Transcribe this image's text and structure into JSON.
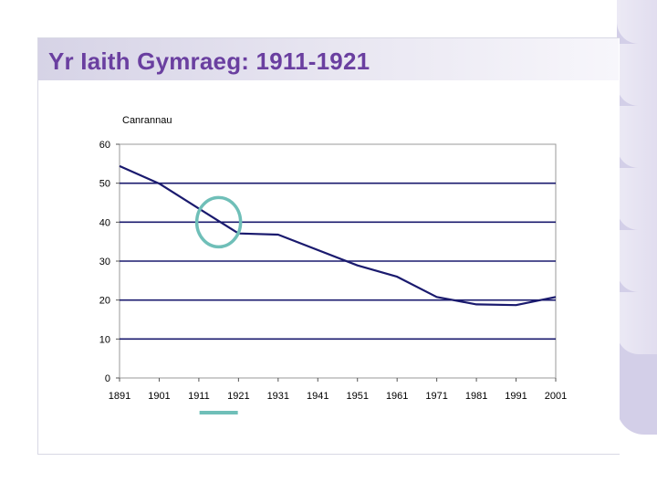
{
  "slide": {
    "title": "Yr Iaith Gymraeg: 1911-1921"
  },
  "colors": {
    "title": "#6a3fa0",
    "series_line": "#1a1a6e",
    "gridline": "#1a1a6e",
    "highlight": "#6fbfb8"
  },
  "chart_data": {
    "type": "line",
    "ylabel": "Canrannau",
    "xlabel": "",
    "ylim": [
      0,
      60
    ],
    "yticks": [
      0,
      10,
      20,
      30,
      40,
      50,
      60
    ],
    "xticks": [
      1891,
      1901,
      1911,
      1921,
      1931,
      1941,
      1951,
      1961,
      1971,
      1981,
      1991,
      2001
    ],
    "xlim": [
      1891,
      2001
    ],
    "grid": "horizontal",
    "series": [
      {
        "x": [
          1891,
          1901,
          1911,
          1921,
          1931,
          1951,
          1961,
          1971,
          1981,
          1991,
          2001
        ],
        "values": [
          54.4,
          49.9,
          43.5,
          37.1,
          36.8,
          28.9,
          26.0,
          20.8,
          18.9,
          18.7,
          20.8
        ]
      }
    ],
    "annotations": [
      {
        "type": "circle",
        "x": 1916,
        "y": 40
      },
      {
        "type": "underline",
        "x": 1916
      }
    ]
  }
}
